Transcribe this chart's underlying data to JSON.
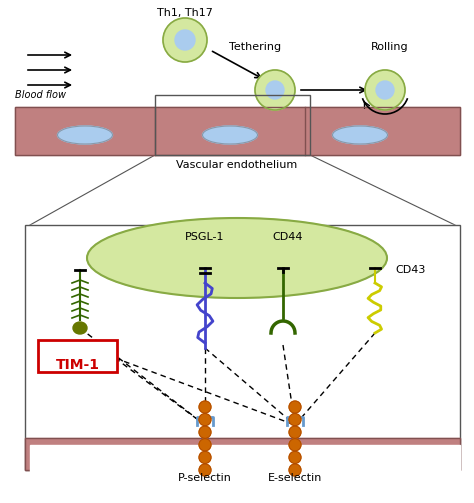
{
  "fig_width": 4.74,
  "fig_height": 5.03,
  "bg_color": "#ffffff",
  "endothelium_color": "#c08080",
  "cell_outer_color": "#d4e8a0",
  "cell_inner_color": "#aaccee",
  "bottom_bar_color": "#c08080",
  "zoom_box_color": "#e8f0d0",
  "tim1_box_color": "#ffffff",
  "tim1_text_color": "#cc0000",
  "psgl1_color": "#4444cc",
  "cd44_color": "#336600",
  "cd43_color": "#cccc00",
  "tim1_molecule_color": "#336600",
  "selectin_bead_color": "#cc6600",
  "labels": {
    "th1_th17": "Th1, Th17",
    "tethering": "Tethering",
    "rolling": "Rolling",
    "blood_flow": "Blood flow",
    "vascular": "Vascular endothelium",
    "psgl1": "PSGL-1",
    "cd44": "CD44",
    "cd43": "CD43",
    "tim1": "TIM-1",
    "p_selectin": "P-selectin",
    "e_selectin": "E-selectin"
  }
}
